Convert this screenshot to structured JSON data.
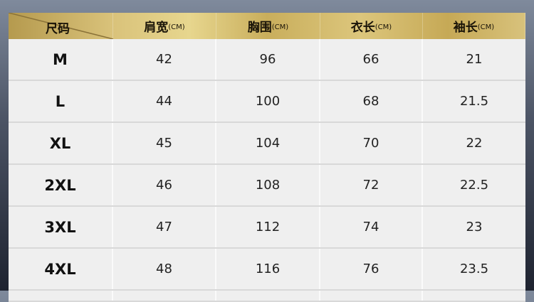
{
  "headers": [
    {
      "label": "尺码",
      "unit": ""
    },
    {
      "label": "肩宽",
      "unit": "(CM)"
    },
    {
      "label": "胸围",
      "unit": "(CM)"
    },
    {
      "label": "衣长",
      "unit": "(CM)"
    },
    {
      "label": "袖长",
      "unit": "(CM)"
    }
  ],
  "rows": [
    [
      "M",
      "42",
      "96",
      "66",
      "21"
    ],
    [
      "L",
      "44",
      "100",
      "68",
      "21.5"
    ],
    [
      "XL",
      "45",
      "104",
      "70",
      "22"
    ],
    [
      "2XL",
      "46",
      "108",
      "72",
      "22.5"
    ],
    [
      "3XL",
      "47",
      "112",
      "74",
      "23"
    ],
    [
      "4XL",
      "48",
      "116",
      "76",
      "23.5"
    ]
  ],
  "colors": {
    "header_gold": "#d9c27a",
    "cell_bg": "#efefef",
    "background": "#4d5566"
  }
}
